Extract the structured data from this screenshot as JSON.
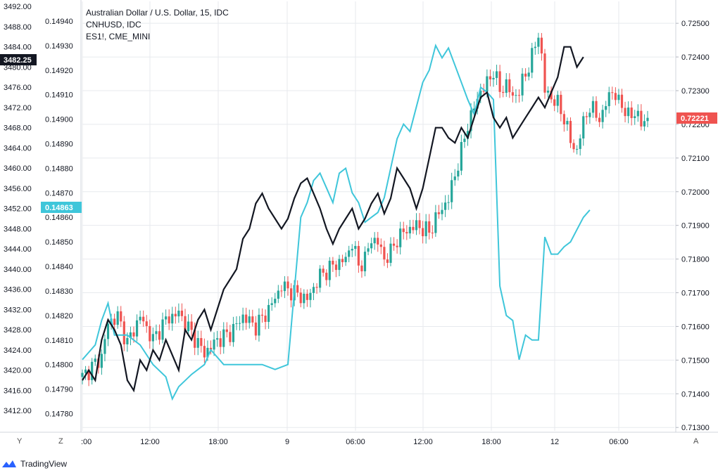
{
  "colors": {
    "background": "#ffffff",
    "grid": "#e7eaee",
    "axis": "#d1d4dc",
    "candle_up": "#26a69a",
    "candle_down": "#ef5350",
    "cnh_line": "#3fc6da",
    "es_line": "#131722",
    "tag_black": "#131722",
    "tag_cyan": "#3fc6da",
    "tag_red": "#ef5350",
    "brand": "#2962ff"
  },
  "legend": {
    "main": "Australian Dollar / U.S. Dollar, 15, IDC",
    "series2": "CNHUSD, IDC",
    "series3": "ES1!, CME_MINI"
  },
  "brand": {
    "name": "TradingView",
    "icon": "tradingview-logo-icon"
  },
  "corner_buttons": {
    "log": "Y",
    "zoom": "Z",
    "auto": "A"
  },
  "price_tags": {
    "es": "3482.25",
    "cnh": "0.14863",
    "aud": "0.72221"
  },
  "chart_data": {
    "type": "line",
    "title": "Australian Dollar / U.S. Dollar, 15, IDC",
    "x_ticks": [
      ":00",
      "12:00",
      "18:00",
      "9",
      "06:00",
      "12:00",
      "18:00",
      "12",
      "06:00"
    ],
    "axes": {
      "left_outer": {
        "series": "ES1!, CME_MINI",
        "ylim": [
          3408,
          3493
        ],
        "ticks": [
          "3492.00",
          "3488.00",
          "3484.00",
          "3480.00",
          "3476.00",
          "3472.00",
          "3468.00",
          "3464.00",
          "3460.00",
          "3456.00",
          "3452.00",
          "3448.00",
          "3444.00",
          "3440.00",
          "3436.00",
          "3432.00",
          "3428.00",
          "3424.00",
          "3420.00",
          "3416.00",
          "3412.00"
        ]
      },
      "left_inner": {
        "series": "CNHUSD, IDC",
        "ylim": [
          0.14773,
          0.14948
        ],
        "ticks": [
          "0.14940",
          "0.14930",
          "0.14920",
          "0.14910",
          "0.14900",
          "0.14890",
          "0.14880",
          "0.14870",
          "0.14860",
          "0.14850",
          "0.14840",
          "0.14830",
          "0.14820",
          "0.14810",
          "0.14800",
          "0.14790",
          "0.14780"
        ]
      },
      "right": {
        "series": "Australian Dollar / U.S. Dollar, 15, IDC",
        "ylim": [
          0.7129,
          0.72565
        ],
        "ticks": [
          "0.72500",
          "0.72400",
          "0.72300",
          "0.72200",
          "0.72100",
          "0.72000",
          "0.71900",
          "0.71800",
          "0.71700",
          "0.71600",
          "0.71500",
          "0.71400",
          "0.71300"
        ]
      }
    },
    "series": [
      {
        "name": "Australian Dollar / U.S. Dollar, 15, IDC",
        "type": "candlestick",
        "axis": "right",
        "last": 0.72221,
        "close_path": [
          [
            0,
            0.7145
          ],
          [
            6,
            0.7151
          ],
          [
            8,
            0.7161
          ],
          [
            11,
            0.7163
          ],
          [
            14,
            0.7155
          ],
          [
            18,
            0.7163
          ],
          [
            22,
            0.7156
          ],
          [
            26,
            0.7162
          ],
          [
            30,
            0.7164
          ],
          [
            34,
            0.7158
          ],
          [
            38,
            0.7152
          ],
          [
            42,
            0.7156
          ],
          [
            46,
            0.7158
          ],
          [
            50,
            0.7163
          ],
          [
            54,
            0.716
          ],
          [
            58,
            0.7165
          ],
          [
            62,
            0.7172
          ],
          [
            66,
            0.717
          ],
          [
            70,
            0.7168
          ],
          [
            74,
            0.7175
          ],
          [
            78,
            0.7178
          ],
          [
            82,
            0.718
          ],
          [
            84,
            0.7185
          ],
          [
            86,
            0.7178
          ],
          [
            88,
            0.718
          ],
          [
            90,
            0.7186
          ],
          [
            92,
            0.7185
          ],
          [
            94,
            0.718
          ],
          [
            96,
            0.7182
          ],
          [
            98,
            0.7186
          ],
          [
            100,
            0.7188
          ],
          [
            104,
            0.719
          ],
          [
            108,
            0.7188
          ],
          [
            110,
            0.7192
          ],
          [
            112,
            0.7195
          ],
          [
            114,
            0.7198
          ],
          [
            116,
            0.7205
          ],
          [
            118,
            0.7212
          ],
          [
            120,
            0.722
          ],
          [
            122,
            0.7225
          ],
          [
            124,
            0.723
          ],
          [
            126,
            0.7232
          ],
          [
            128,
            0.7236
          ],
          [
            130,
            0.723
          ],
          [
            132,
            0.7232
          ],
          [
            134,
            0.7228
          ],
          [
            136,
            0.723
          ],
          [
            138,
            0.7235
          ],
          [
            140,
            0.724
          ],
          [
            142,
            0.7247
          ],
          [
            143,
            0.724
          ],
          [
            144,
            0.723
          ],
          [
            146,
            0.7228
          ],
          [
            148,
            0.7226
          ],
          [
            150,
            0.7222
          ],
          [
            152,
            0.7215
          ],
          [
            154,
            0.7212
          ],
          [
            156,
            0.7221
          ],
          [
            158,
            0.7225
          ],
          [
            160,
            0.7223
          ],
          [
            162,
            0.7222
          ],
          [
            164,
            0.723
          ],
          [
            166,
            0.7228
          ],
          [
            168,
            0.7226
          ],
          [
            170,
            0.7222
          ],
          [
            172,
            0.7224
          ],
          [
            174,
            0.722
          ],
          [
            176,
            0.7222
          ]
        ]
      },
      {
        "name": "CNHUSD, IDC",
        "type": "line",
        "axis": "left_inner",
        "last": 0.14863,
        "points": [
          [
            0,
            0.14802
          ],
          [
            4,
            0.14808
          ],
          [
            6,
            0.14818
          ],
          [
            8,
            0.14825
          ],
          [
            10,
            0.14812
          ],
          [
            14,
            0.14812
          ],
          [
            18,
            0.14808
          ],
          [
            22,
            0.148
          ],
          [
            26,
            0.14795
          ],
          [
            28,
            0.14786
          ],
          [
            30,
            0.14791
          ],
          [
            34,
            0.14796
          ],
          [
            38,
            0.148
          ],
          [
            40,
            0.14806
          ],
          [
            44,
            0.148
          ],
          [
            48,
            0.148
          ],
          [
            52,
            0.148
          ],
          [
            56,
            0.148
          ],
          [
            60,
            0.14798
          ],
          [
            64,
            0.148
          ],
          [
            66,
            0.1483
          ],
          [
            68,
            0.1486
          ],
          [
            70,
            0.14866
          ],
          [
            72,
            0.14875
          ],
          [
            74,
            0.14878
          ],
          [
            76,
            0.14872
          ],
          [
            78,
            0.14866
          ],
          [
            80,
            0.14878
          ],
          [
            82,
            0.1488
          ],
          [
            84,
            0.1487
          ],
          [
            86,
            0.14866
          ],
          [
            88,
            0.14858
          ],
          [
            90,
            0.1486
          ],
          [
            92,
            0.14862
          ],
          [
            94,
            0.14868
          ],
          [
            96,
            0.1488
          ],
          [
            98,
            0.14892
          ],
          [
            100,
            0.14898
          ],
          [
            102,
            0.14895
          ],
          [
            104,
            0.14905
          ],
          [
            106,
            0.14915
          ],
          [
            108,
            0.1492
          ],
          [
            110,
            0.1493
          ],
          [
            112,
            0.14925
          ],
          [
            114,
            0.14929
          ],
          [
            116,
            0.14922
          ],
          [
            118,
            0.14915
          ],
          [
            120,
            0.14908
          ],
          [
            122,
            0.14902
          ],
          [
            124,
            0.14913
          ],
          [
            126,
            0.14911
          ],
          [
            128,
            0.14908
          ],
          [
            130,
            0.14832
          ],
          [
            132,
            0.1482
          ],
          [
            134,
            0.14818
          ],
          [
            136,
            0.14802
          ],
          [
            138,
            0.14812
          ],
          [
            140,
            0.1481
          ],
          [
            142,
            0.1481
          ],
          [
            144,
            0.14852
          ],
          [
            146,
            0.14845
          ],
          [
            148,
            0.14845
          ],
          [
            150,
            0.14848
          ],
          [
            152,
            0.1485
          ],
          [
            154,
            0.14855
          ],
          [
            156,
            0.1486
          ],
          [
            158,
            0.14863
          ]
        ]
      },
      {
        "name": "ES1!, CME_MINI",
        "type": "line",
        "axis": "left_outer",
        "last": 3482.25,
        "points": [
          [
            0,
            3418
          ],
          [
            2,
            3420
          ],
          [
            4,
            3418
          ],
          [
            6,
            3426
          ],
          [
            8,
            3430
          ],
          [
            10,
            3428
          ],
          [
            12,
            3425
          ],
          [
            14,
            3418
          ],
          [
            16,
            3416
          ],
          [
            18,
            3422
          ],
          [
            20,
            3420
          ],
          [
            22,
            3424
          ],
          [
            24,
            3422
          ],
          [
            26,
            3426
          ],
          [
            28,
            3423
          ],
          [
            30,
            3420
          ],
          [
            32,
            3428
          ],
          [
            34,
            3426
          ],
          [
            36,
            3430
          ],
          [
            38,
            3432
          ],
          [
            40,
            3428
          ],
          [
            42,
            3432
          ],
          [
            44,
            3436
          ],
          [
            46,
            3438
          ],
          [
            48,
            3440
          ],
          [
            50,
            3446
          ],
          [
            52,
            3448
          ],
          [
            54,
            3453
          ],
          [
            56,
            3455
          ],
          [
            58,
            3452
          ],
          [
            60,
            3450
          ],
          [
            62,
            3448
          ],
          [
            64,
            3450
          ],
          [
            66,
            3454
          ],
          [
            68,
            3457
          ],
          [
            70,
            3458
          ],
          [
            72,
            3455
          ],
          [
            74,
            3452
          ],
          [
            76,
            3448
          ],
          [
            78,
            3445
          ],
          [
            80,
            3448
          ],
          [
            82,
            3450
          ],
          [
            84,
            3452
          ],
          [
            86,
            3448
          ],
          [
            88,
            3450
          ],
          [
            90,
            3453
          ],
          [
            92,
            3455
          ],
          [
            94,
            3451
          ],
          [
            96,
            3454
          ],
          [
            98,
            3460
          ],
          [
            100,
            3458
          ],
          [
            102,
            3456
          ],
          [
            104,
            3452
          ],
          [
            106,
            3456
          ],
          [
            108,
            3462
          ],
          [
            110,
            3468
          ],
          [
            112,
            3468
          ],
          [
            114,
            3466
          ],
          [
            116,
            3465
          ],
          [
            118,
            3468
          ],
          [
            120,
            3466
          ],
          [
            122,
            3470
          ],
          [
            124,
            3474
          ],
          [
            126,
            3475
          ],
          [
            128,
            3470
          ],
          [
            130,
            3468
          ],
          [
            132,
            3470
          ],
          [
            134,
            3466
          ],
          [
            136,
            3468
          ],
          [
            138,
            3470
          ],
          [
            140,
            3472
          ],
          [
            142,
            3474
          ],
          [
            144,
            3472
          ],
          [
            146,
            3475
          ],
          [
            148,
            3478
          ],
          [
            150,
            3484
          ],
          [
            152,
            3484
          ],
          [
            154,
            3480
          ],
          [
            156,
            3482
          ]
        ]
      }
    ]
  }
}
